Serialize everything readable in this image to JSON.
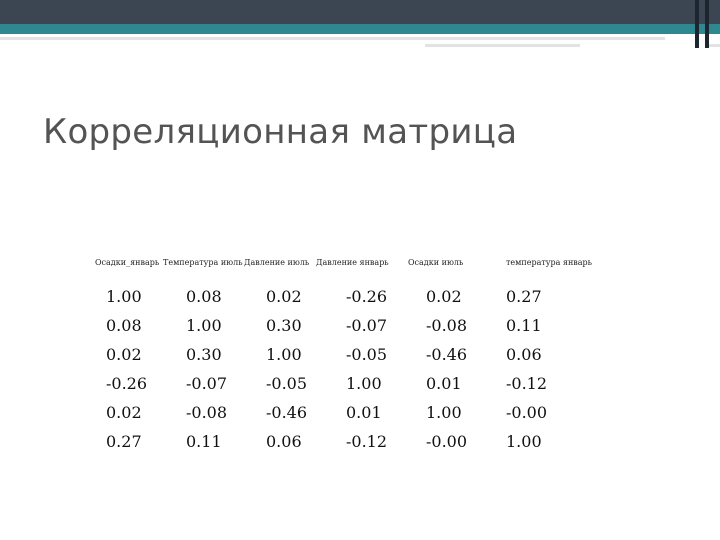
{
  "title": "Корреляционная матрица",
  "columns": [
    "Осадки_январь",
    "Температура июль",
    "Давление июль",
    "Давление январь",
    "Осадки июль",
    "температура январь"
  ],
  "rows": [
    [
      "1.00",
      "0.08",
      "0.02",
      "-0.26",
      "0.02",
      "0.27"
    ],
    [
      "0.08",
      "1.00",
      "0.30",
      "-0.07",
      "-0.08",
      "0.11"
    ],
    [
      "0.02",
      "0.30",
      "1.00",
      "-0.05",
      "-0.46",
      "0.06"
    ],
    [
      "-0.26",
      "-0.07",
      "-0.05",
      "1.00",
      "0.01",
      "-0.12"
    ],
    [
      "0.02",
      "-0.08",
      "-0.46",
      "0.01",
      "1.00",
      "-0.00"
    ],
    [
      "0.27",
      "0.11",
      "0.06",
      "-0.12",
      "-0.00",
      "1.00"
    ]
  ],
  "colors": {
    "topbar": "#3b4652",
    "accent": "#2f8890",
    "title": "#545454"
  }
}
